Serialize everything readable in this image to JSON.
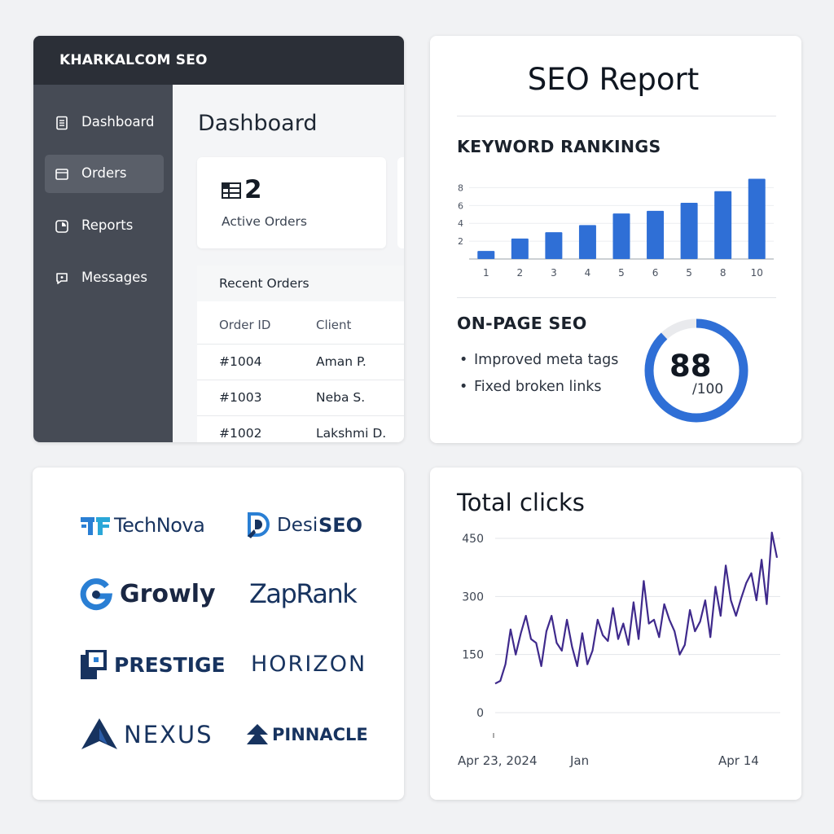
{
  "dashboard": {
    "brand": "KHARKALCOM SEO",
    "nav": [
      {
        "label": "Dashboard",
        "icon": "document-icon"
      },
      {
        "label": "Orders",
        "icon": "folder-icon",
        "active": true
      },
      {
        "label": "Reports",
        "icon": "pie-chart-icon"
      },
      {
        "label": "Messages",
        "icon": "chat-icon"
      }
    ],
    "title": "Dashboard",
    "stat": {
      "value": "2",
      "label": "Active Orders",
      "icon": "orders-grid-icon"
    },
    "recent": {
      "title": "Recent Orders",
      "columns": [
        "Order ID",
        "Client"
      ],
      "rows": [
        {
          "id": "#1004",
          "client": "Aman P."
        },
        {
          "id": "#1003",
          "client": "Neba S."
        },
        {
          "id": "#1002",
          "client": "Lakshmi D."
        }
      ]
    }
  },
  "seo_report": {
    "title": "SEO Report",
    "keyword_heading": "KEYWORD RANKINGS",
    "onpage_heading": "ON-PAGE SEO",
    "bullets": [
      "Improved meta tags",
      "Fixed broken links"
    ],
    "score": {
      "value": "88",
      "out_of": "/100",
      "fraction": 0.88
    },
    "accent": "#2f6fd6"
  },
  "logos": [
    {
      "name": "TechNova"
    },
    {
      "name": "DesiSEO",
      "parts": [
        "Desi",
        "SEO"
      ]
    },
    {
      "name": "Growly"
    },
    {
      "name": "ZapRank"
    },
    {
      "name": "PRESTIGE"
    },
    {
      "name": "HORIZON"
    },
    {
      "name": "NEXUS"
    },
    {
      "name": "PINNACLE"
    }
  ],
  "chart_data": [
    {
      "type": "bar",
      "title": "KEYWORD RANKINGS",
      "categories": [
        "1",
        "2",
        "3",
        "4",
        "5",
        "6",
        "5",
        "8",
        "10"
      ],
      "values": [
        0.9,
        2.3,
        3.0,
        3.8,
        5.1,
        5.4,
        6.3,
        7.6,
        9.0
      ],
      "yticks": [
        "2",
        "4",
        "6",
        "8"
      ],
      "ylim": [
        0,
        9.5
      ],
      "grid": true,
      "color": "#2f6fd6"
    },
    {
      "type": "line",
      "title": "Total clicks",
      "yticks": [
        0,
        150,
        300,
        450
      ],
      "ylim": [
        0,
        450
      ],
      "xlabels": [
        "Apr 23, 2024",
        "Jan",
        "Apr 14"
      ],
      "grid": true,
      "color": "#3f2a8c",
      "values": [
        75,
        82,
        125,
        215,
        150,
        205,
        250,
        190,
        180,
        120,
        210,
        250,
        180,
        160,
        240,
        170,
        120,
        205,
        125,
        160,
        240,
        200,
        185,
        270,
        190,
        230,
        175,
        285,
        190,
        340,
        230,
        240,
        195,
        280,
        240,
        210,
        150,
        175,
        265,
        210,
        235,
        290,
        195,
        325,
        250,
        380,
        290,
        250,
        295,
        335,
        360,
        290,
        395,
        280,
        465,
        400
      ]
    }
  ]
}
